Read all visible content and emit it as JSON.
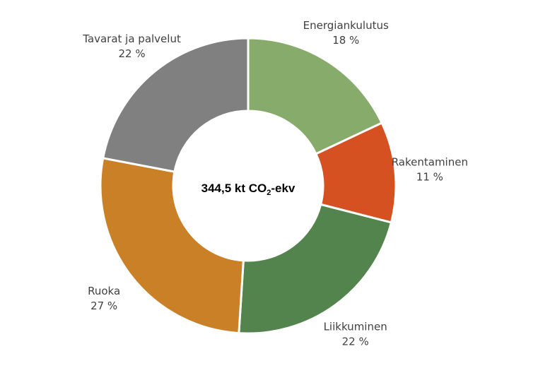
{
  "chart_data": {
    "type": "pie",
    "variant": "donut",
    "center_label": {
      "value_text": "344,5 kt CO",
      "subscript": "2",
      "suffix": "-ekv"
    },
    "slices": [
      {
        "name": "Energiankulutus",
        "value": 18,
        "value_label": "18 %",
        "color": "#87AB6B"
      },
      {
        "name": "Rakentaminen",
        "value": 11,
        "value_label": "11 %",
        "color": "#D55121"
      },
      {
        "name": "Liikkuminen",
        "value": 22,
        "value_label": "22 %",
        "color": "#54844D"
      },
      {
        "name": "Ruoka",
        "value": 27,
        "value_label": "27 %",
        "color": "#C98027"
      },
      {
        "name": "Tavarat ja palvelut",
        "value": 22,
        "value_label": "22 %",
        "color": "#808080"
      }
    ],
    "legend": "none"
  }
}
